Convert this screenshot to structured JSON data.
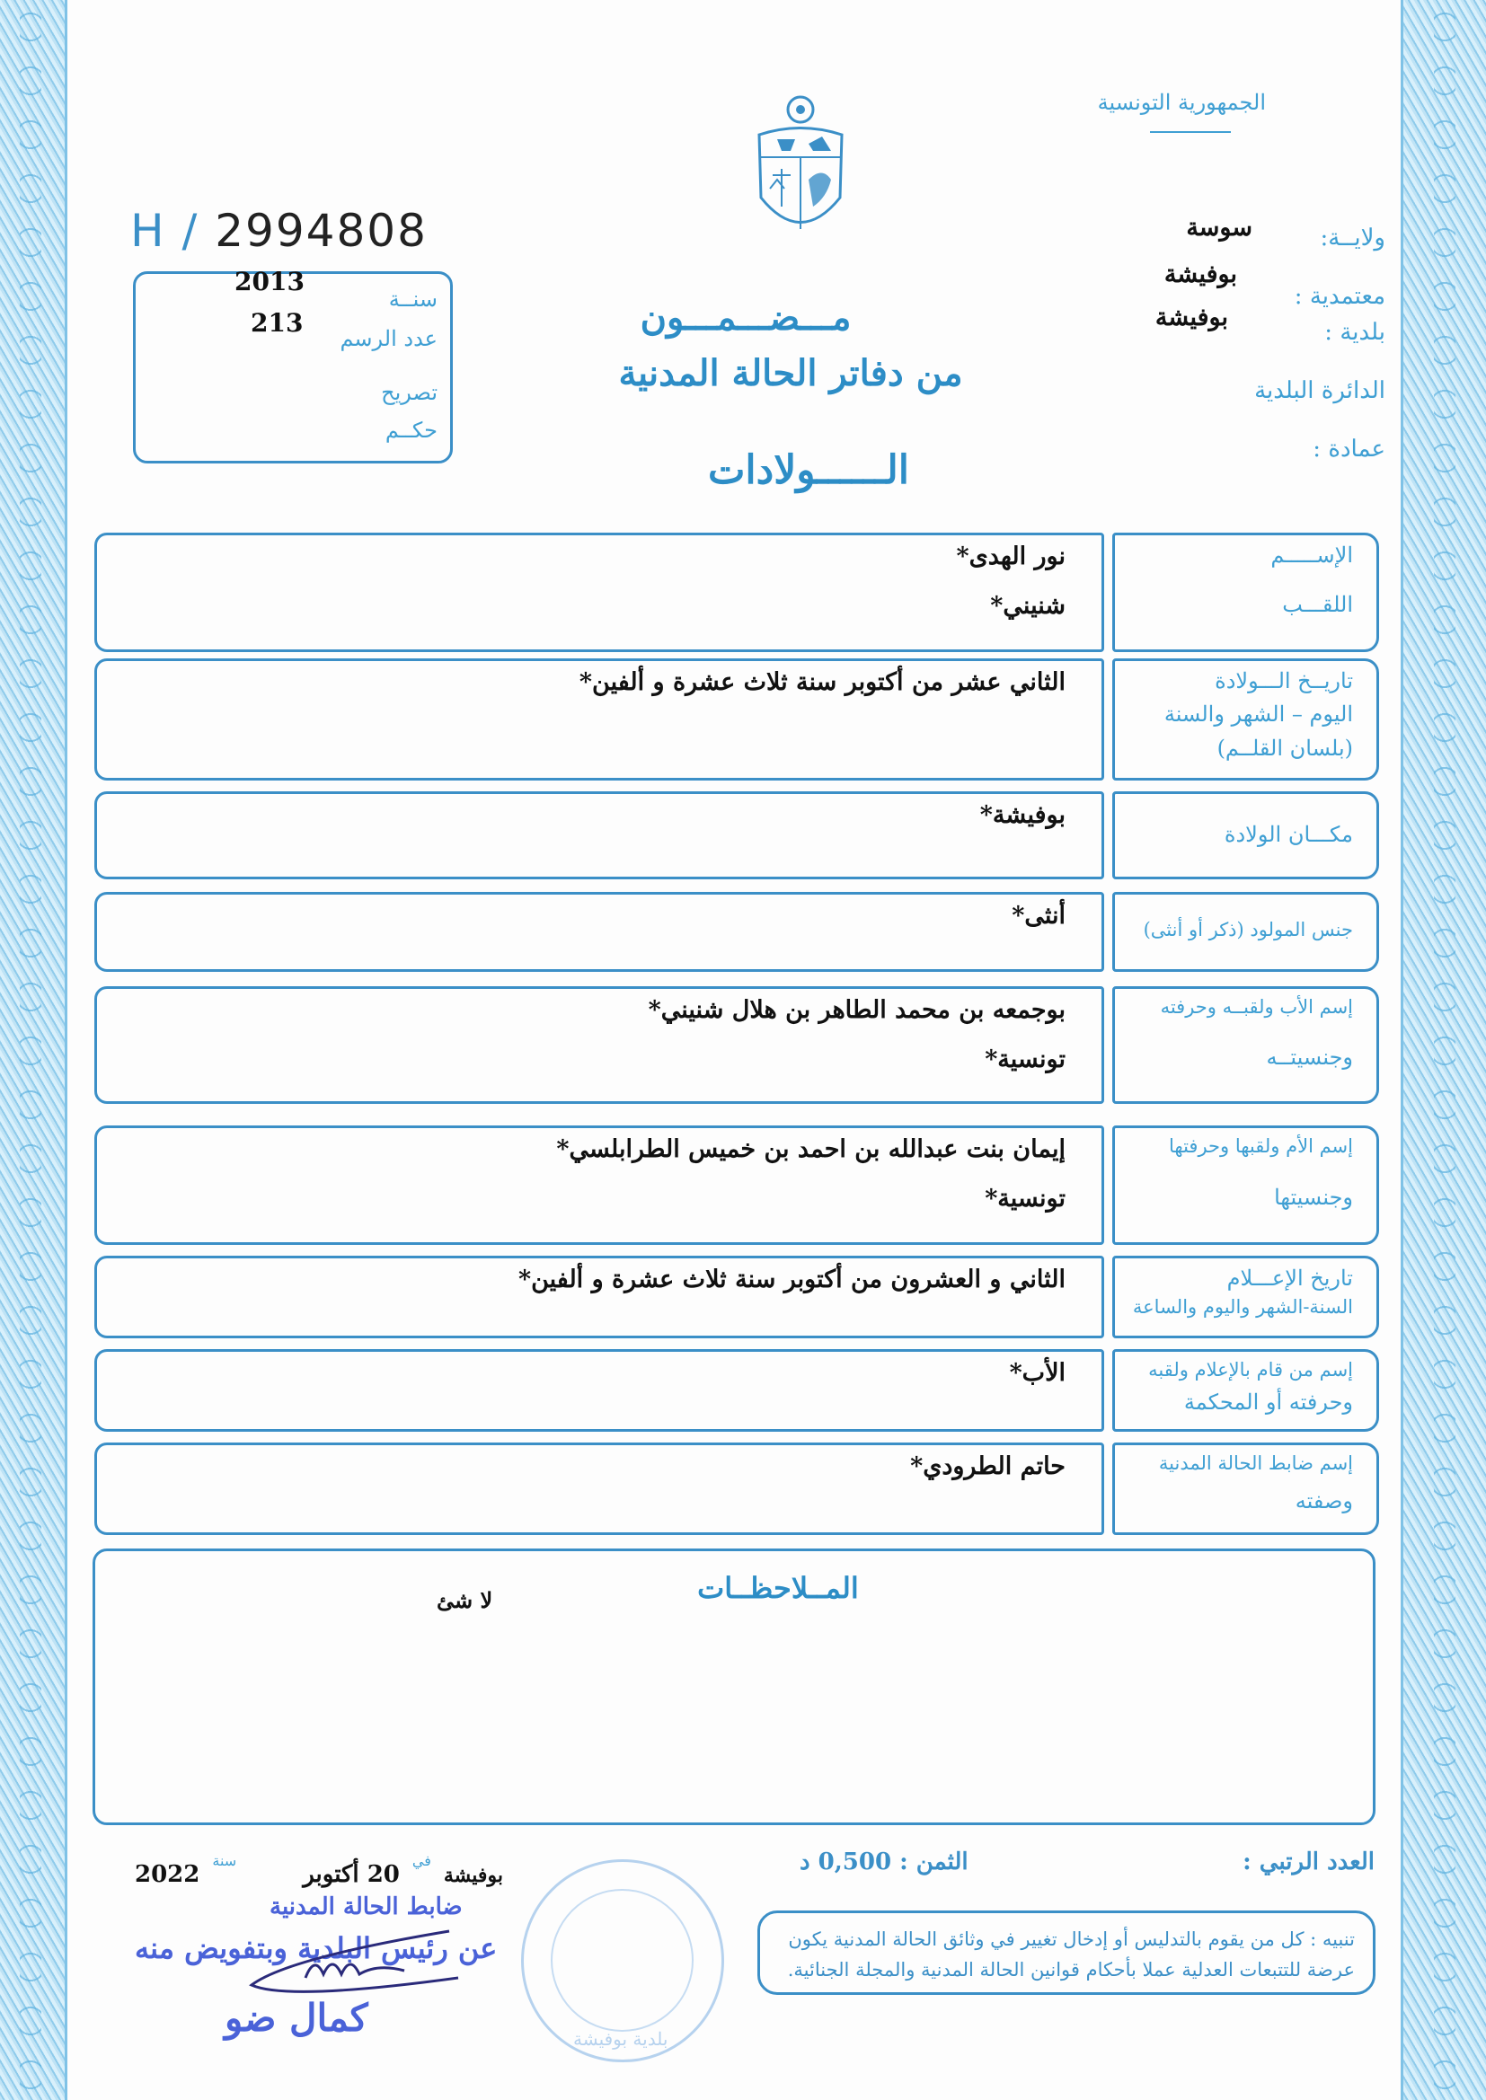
{
  "header": {
    "republic": "الجمهورية التونسية",
    "wilaya_label": "ولايــة:",
    "wilaya_value": "سوسة",
    "delegation_label": "معتمدية :",
    "delegation_value": "بوفيشة",
    "municipality_label": "بلدية :",
    "municipality_value": "بوفيشة",
    "district_label": "الدائرة البلدية",
    "omda_label": "عمادة :"
  },
  "serial": {
    "prefix": "H /",
    "number": "2994808"
  },
  "record_box": {
    "year_label": "سنــة",
    "year_value": "2013",
    "act_label": "عدد الرسم",
    "act_value": "213",
    "declaration_label": "تصريح",
    "judgment_label": "حكــم"
  },
  "title": {
    "line1": "مـــضـــمـــون",
    "line2": "من دفاتر الحالة المدنية",
    "line3": "الــــــولادات"
  },
  "rows": [
    {
      "labels": [
        "الإســـــم",
        "اللقـــب"
      ],
      "values": [
        "نور الهدى*",
        "شنيني*"
      ]
    },
    {
      "labels": [
        "تاريــخ الـــولادة",
        "اليوم – الشهر والسنة",
        "(بلسان القلــم)"
      ],
      "values": [
        "الثاني عشر من أكتوبر سنة ثلاث عشرة و ألفين*"
      ]
    },
    {
      "labels": [
        "مكـــان الولادة"
      ],
      "values": [
        "بوفيشة*"
      ]
    },
    {
      "labels": [
        "جنس المولود (ذكر أو أنثى)"
      ],
      "values": [
        "أنثى*"
      ]
    },
    {
      "labels": [
        "إسم الأب ولقبــه وحرفته",
        "وجنسيتــه"
      ],
      "values": [
        "بوجمعه بن محمد الطاهر بن هلال شنيني*",
        "تونسية*"
      ]
    },
    {
      "labels": [
        "إسم الأم ولقبها وحرفتها",
        "وجنسيتها"
      ],
      "values": [
        "إيمان بنت عبدالله بن احمد بن خميس الطرابلسي*",
        "تونسية*"
      ]
    },
    {
      "labels": [
        "تاريخ الإعـــلام",
        "السنة-الشهر واليوم والساعة"
      ],
      "values": [
        "الثاني و العشرون من أكتوبر سنة ثلاث عشرة و ألفين*"
      ]
    },
    {
      "labels": [
        "إسم من قام بالإعلام ولقبه",
        "وحرفته أو المحكمة"
      ],
      "values": [
        "الأب*"
      ]
    },
    {
      "labels": [
        "إسم ضابط الحالة المدنية",
        "وصفته"
      ],
      "values": [
        "حاتم الطرودي*"
      ]
    }
  ],
  "remarks": {
    "label": "المــلاحظــات",
    "value": "لا شئ"
  },
  "footer": {
    "serial_label": "العدد الرتبي :",
    "price_label": "الثمن :",
    "price_value": "0,500 د",
    "place": "بوفيشة",
    "date_prefix": "في",
    "date": "20 أكتوبر",
    "year_label": "سنة",
    "year": "2022",
    "officer_title": "ضابط الحالة المدنية",
    "delegation_stamp": "عن رئيس البلدية وبتفويض منه",
    "officer_name": "كمال ضو",
    "seal_text": "بلدية بوفيشة",
    "notice": "تنبيه : كل من يقوم بالتدليس أو إدخال تغيير في وثائق الحالة المدنية يكون عرضة للتتبعات العدلية عملا بأحكام قوانين الحالة المدنية والمجلة الجنائية."
  },
  "colors": {
    "ink_blue": "#3f9fd3",
    "frame_blue": "#3b8fc7",
    "stamp_blue": "#4a62d8"
  }
}
